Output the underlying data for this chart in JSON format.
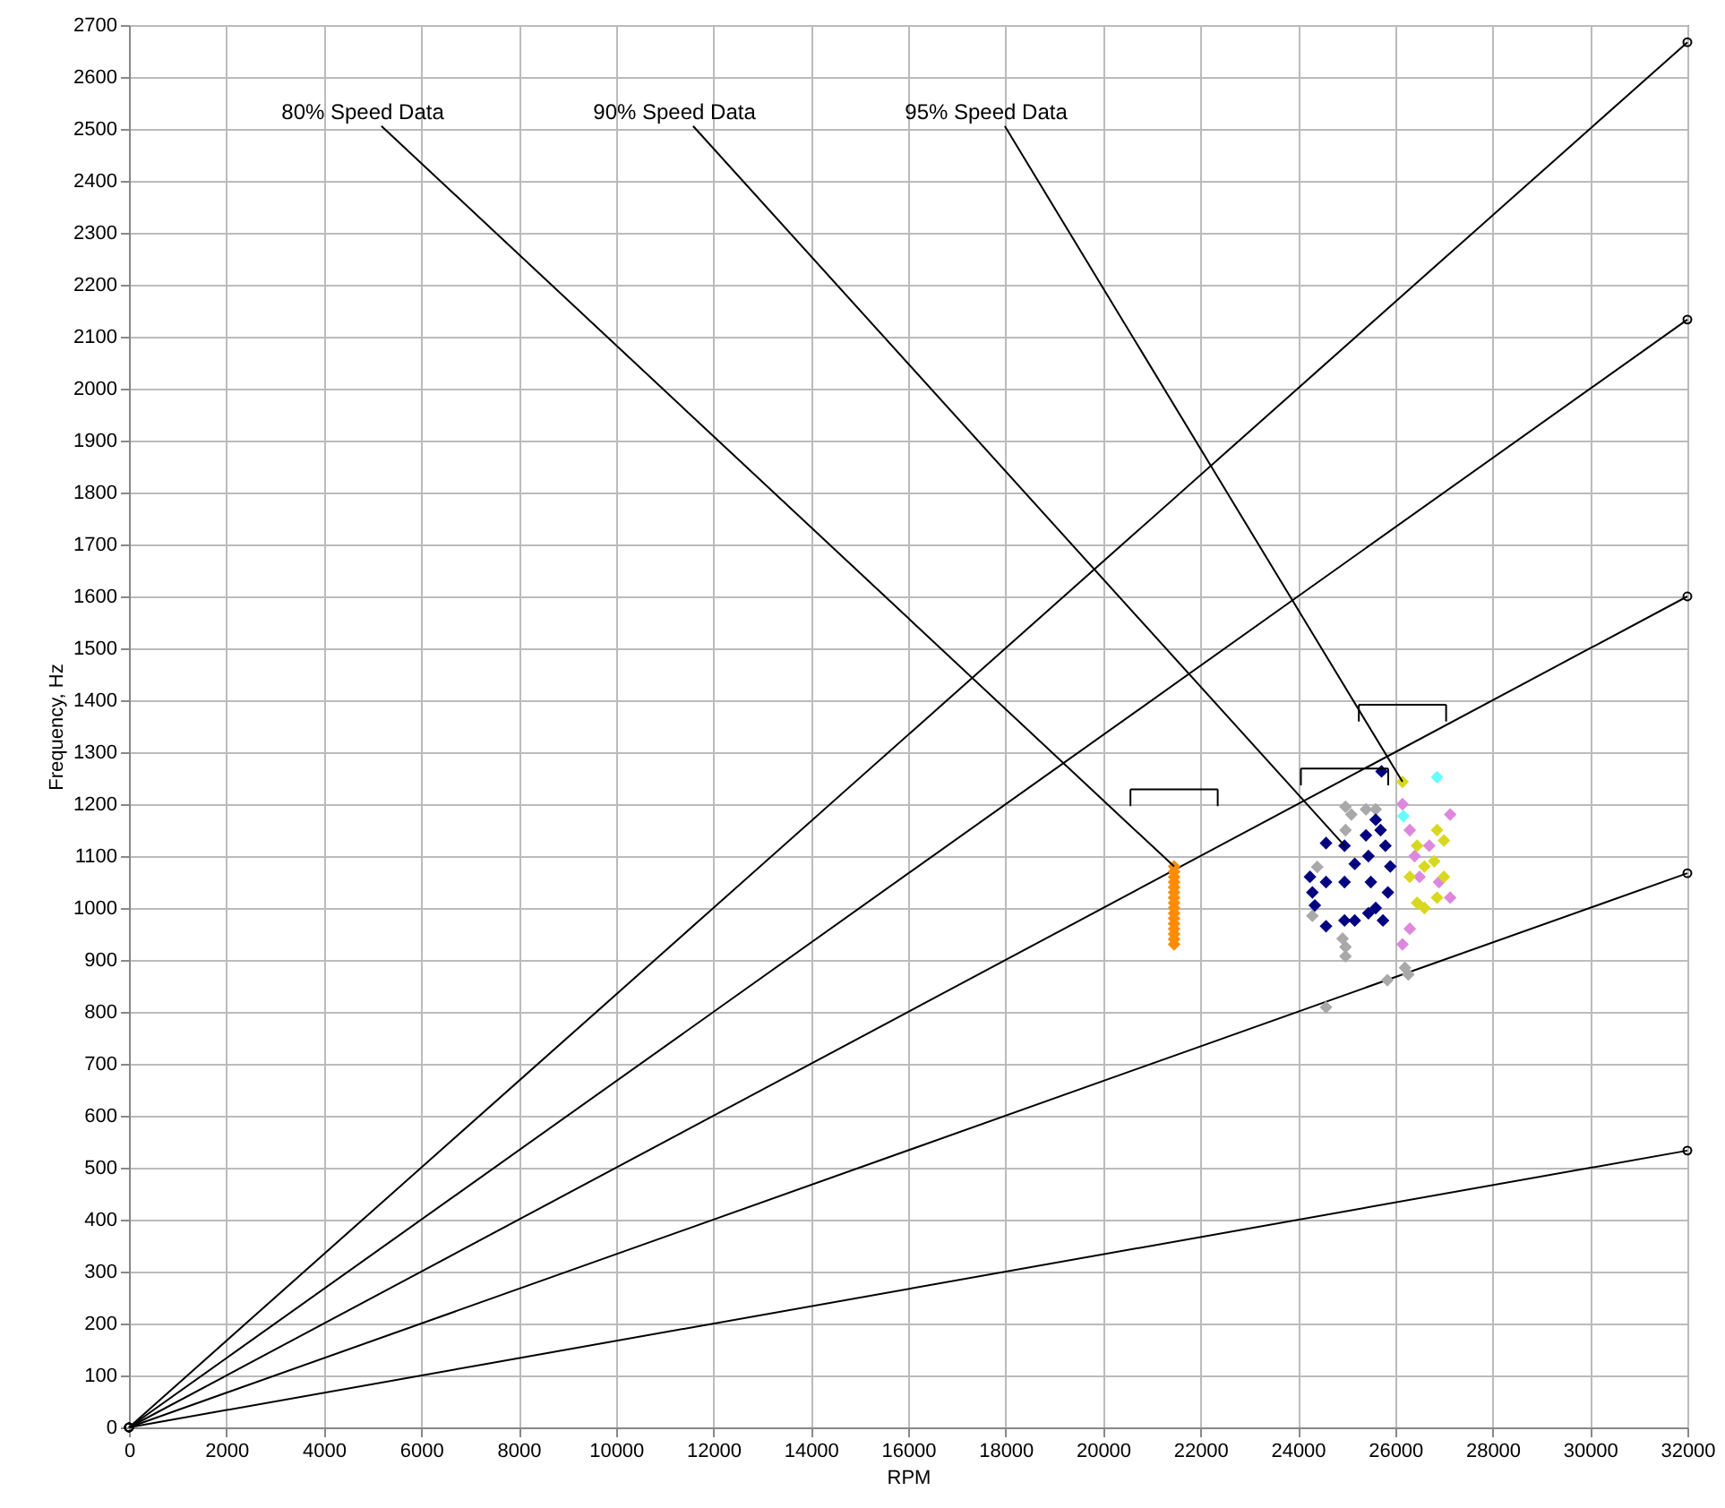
{
  "chart_data": {
    "type": "scatter",
    "xlabel": "RPM",
    "ylabel": "Frequency, Hz",
    "xlim": [
      0,
      32000
    ],
    "ylim": [
      0,
      2700
    ],
    "xticks": [
      0,
      2000,
      4000,
      6000,
      8000,
      10000,
      12000,
      14000,
      16000,
      18000,
      20000,
      22000,
      24000,
      26000,
      28000,
      30000,
      32000
    ],
    "yticks": [
      0,
      100,
      200,
      300,
      400,
      500,
      600,
      700,
      800,
      900,
      1000,
      1100,
      1200,
      1300,
      1400,
      1500,
      1600,
      1700,
      1800,
      1900,
      2000,
      2100,
      2200,
      2300,
      2400,
      2500,
      2600,
      2700
    ],
    "grid": true,
    "series": [
      {
        "type": "line",
        "marker": "circle",
        "color": "#000000",
        "x": [
          0,
          32000
        ],
        "values": [
          0,
          533
        ]
      },
      {
        "type": "line",
        "marker": "circle",
        "color": "#000000",
        "x": [
          0,
          32000
        ],
        "values": [
          0,
          1067
        ]
      },
      {
        "type": "line",
        "marker": "circle",
        "color": "#000000",
        "x": [
          0,
          32000
        ],
        "values": [
          0,
          1600
        ]
      },
      {
        "type": "line",
        "marker": "circle",
        "color": "#000000",
        "x": [
          0,
          32000
        ],
        "values": [
          0,
          2133
        ]
      },
      {
        "type": "line",
        "marker": "circle",
        "color": "#000000",
        "x": [
          0,
          32000
        ],
        "values": [
          0,
          2667
        ]
      },
      {
        "marker": "diamond",
        "color": "#a9a9a9",
        "x": [
          24980,
          24980,
          24980,
          24980,
          25400,
          24580,
          25840,
          26270,
          24400,
          24920,
          24300,
          25100,
          25600,
          26200
        ],
        "values": [
          1195,
          1150,
          925,
          907,
          1190,
          809,
          861,
          872,
          1079,
          941,
          985,
          1180,
          1190,
          885
        ]
      },
      {
        "marker": "diamond",
        "color": "#ff8c00",
        "x": [
          21460,
          21460,
          21460,
          21460,
          21460,
          21460,
          21460,
          21460,
          21460,
          21460,
          21460,
          21460,
          21460,
          21460,
          21460,
          21460
        ],
        "values": [
          930,
          940,
          950,
          960,
          970,
          980,
          990,
          1000,
          1010,
          1020,
          1030,
          1040,
          1050,
          1060,
          1070,
          1080
        ]
      },
      {
        "marker": "diamond",
        "color": "#000080",
        "x": [
          25720,
          24250,
          24300,
          24350,
          24580,
          24580,
          24580,
          24960,
          24960,
          24960,
          25170,
          25170,
          25400,
          25450,
          25500,
          25600,
          25700,
          25800,
          25900,
          25600,
          25750,
          25450,
          25850
        ],
        "values": [
          1263,
          1060,
          1030,
          1005,
          1125,
          1050,
          965,
          1120,
          1050,
          976,
          1085,
          976,
          1140,
          1100,
          1050,
          1170,
          1150,
          1120,
          1080,
          1000,
          976,
          990,
          1030
        ]
      },
      {
        "marker": "diamond",
        "color": "#dd88dd",
        "x": [
          26150,
          26300,
          26400,
          26500,
          26700,
          26900,
          27130,
          27130,
          26300,
          26150
        ],
        "values": [
          1200,
          1150,
          1100,
          1060,
          1120,
          1050,
          1180,
          1020,
          960,
          930
        ]
      },
      {
        "marker": "diamond",
        "color": "#d8d820",
        "x": [
          26150,
          26300,
          26450,
          26600,
          26600,
          26800,
          26860,
          26860,
          27000,
          27000,
          26450
        ],
        "values": [
          1243,
          1060,
          1120,
          1080,
          1000,
          1090,
          1150,
          1020,
          1130,
          1060,
          1010
        ]
      },
      {
        "marker": "diamond",
        "color": "#66ffff",
        "x": [
          26860,
          26170
        ],
        "values": [
          1252,
          1177
        ]
      }
    ],
    "annotations": [
      {
        "text": "80% Speed Data",
        "x": 21460,
        "y": 1080
      },
      {
        "text": "90% Speed Data",
        "x": 24960,
        "y": 1120
      },
      {
        "text": "95% Speed Data",
        "x": 26150,
        "y": 1243
      }
    ]
  }
}
